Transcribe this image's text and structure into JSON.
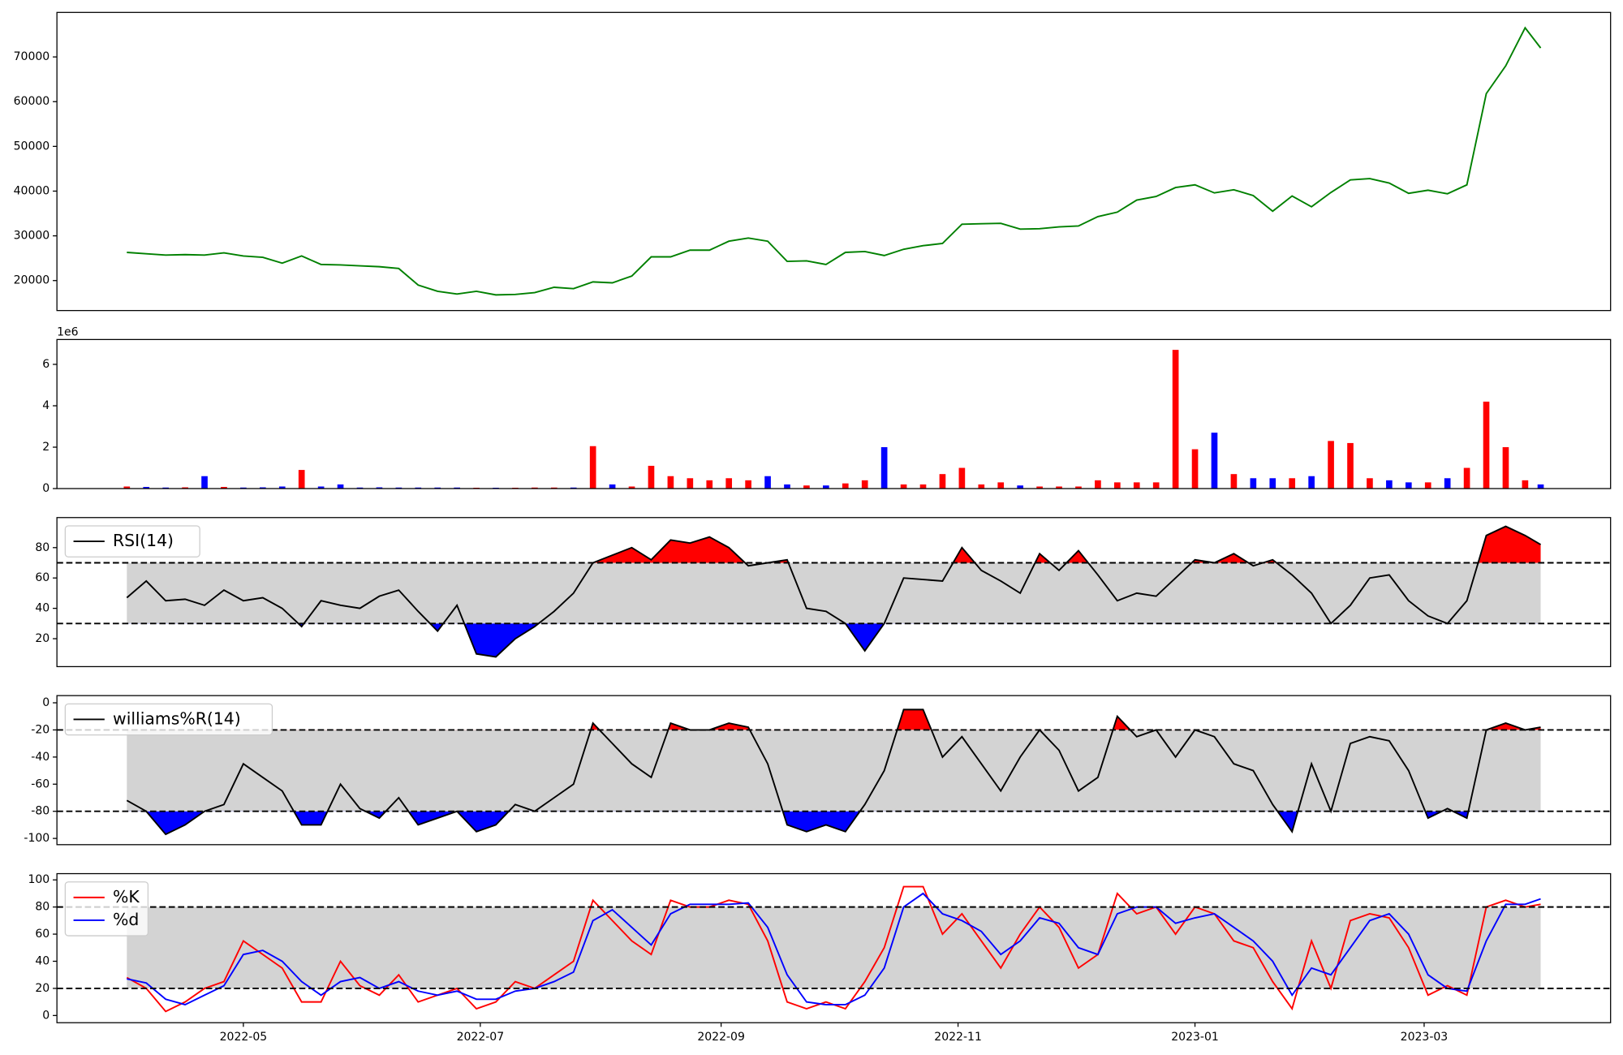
{
  "chart_data": [
    {
      "type": "line",
      "x": [
        0,
        5,
        10,
        15,
        20,
        25,
        30,
        35,
        40,
        45,
        50,
        55,
        60,
        65,
        70,
        75,
        80,
        85,
        90,
        95,
        100,
        105,
        110,
        115,
        120,
        125,
        130,
        135,
        140,
        145,
        150,
        155,
        160,
        165,
        170,
        175,
        180,
        185,
        190,
        195,
        200,
        205,
        210,
        215,
        220,
        225,
        230,
        235,
        240,
        245,
        250,
        255,
        260,
        265,
        270,
        275,
        280,
        285,
        290,
        295,
        300,
        305,
        310,
        315,
        320,
        325,
        330,
        335,
        340,
        345,
        350,
        355,
        360,
        364
      ],
      "series": [
        {
          "color": "green",
          "values": [
            26300,
            26000,
            25700,
            25800,
            25700,
            26200,
            25500,
            25200,
            23900,
            25500,
            23600,
            23500,
            23300,
            23100,
            22700,
            19000,
            17600,
            17000,
            17600,
            16800,
            16900,
            17300,
            18500,
            18200,
            19700,
            19500,
            21000,
            25300,
            25300,
            26800,
            26800,
            28800,
            29500,
            28800,
            24300,
            24400,
            23600,
            26300,
            26500,
            25600,
            27000,
            27800,
            28300,
            32600,
            32700,
            32800,
            31500,
            31600,
            32000,
            32200,
            34300,
            35300,
            38000,
            38800,
            40800,
            41400,
            39600,
            40300,
            39000,
            35500,
            38900,
            36500,
            39700,
            42500,
            42800,
            41800,
            39500,
            40200,
            39400,
            41400,
            61800,
            68000,
            76500,
            72000
          ]
        }
      ],
      "xlim": [
        -18,
        382
      ],
      "ylim": [
        13300,
        79950
      ],
      "yticks": [
        20000,
        30000,
        40000,
        50000,
        60000,
        70000
      ]
    },
    {
      "type": "bar",
      "x": [
        0,
        5,
        10,
        15,
        20,
        25,
        30,
        35,
        40,
        45,
        50,
        55,
        60,
        65,
        70,
        75,
        80,
        85,
        90,
        95,
        100,
        105,
        110,
        115,
        120,
        125,
        130,
        135,
        140,
        145,
        150,
        155,
        160,
        165,
        170,
        175,
        180,
        185,
        190,
        195,
        200,
        205,
        210,
        215,
        220,
        225,
        230,
        235,
        240,
        245,
        250,
        255,
        260,
        265,
        270,
        275,
        280,
        285,
        290,
        295,
        300,
        305,
        310,
        315,
        320,
        325,
        330,
        335,
        340,
        345,
        350,
        355,
        360,
        364
      ],
      "values": [
        0.1,
        0.08,
        0.05,
        0.06,
        0.6,
        0.08,
        0.05,
        0.06,
        0.1,
        0.9,
        0.1,
        0.2,
        0.05,
        0.06,
        0.05,
        0.05,
        0.05,
        0.05,
        0.04,
        0.04,
        0.04,
        0.05,
        0.05,
        0.05,
        2.05,
        0.2,
        0.1,
        1.1,
        0.6,
        0.5,
        0.4,
        0.5,
        0.4,
        0.6,
        0.2,
        0.15,
        0.15,
        0.25,
        0.4,
        2.0,
        0.2,
        0.2,
        0.7,
        1.0,
        0.2,
        0.3,
        0.15,
        0.1,
        0.1,
        0.1,
        0.4,
        0.3,
        0.3,
        0.3,
        6.7,
        1.9,
        2.7,
        0.7,
        0.5,
        0.5,
        0.5,
        0.6,
        2.3,
        2.2,
        0.5,
        0.4,
        0.3,
        0.3,
        0.5,
        1.0,
        4.2,
        2.0,
        0.4,
        0.2
      ],
      "colors": [
        "red",
        "blue",
        "blue",
        "red",
        "blue",
        "red",
        "blue",
        "blue",
        "blue",
        "red",
        "blue",
        "blue",
        "blue",
        "blue",
        "blue",
        "blue",
        "blue",
        "blue",
        "red",
        "blue",
        "red",
        "red",
        "red",
        "blue",
        "red",
        "blue",
        "red",
        "red",
        "red",
        "red",
        "red",
        "red",
        "red",
        "blue",
        "blue",
        "red",
        "blue",
        "red",
        "red",
        "blue",
        "red",
        "red",
        "red",
        "red",
        "red",
        "red",
        "blue",
        "red",
        "red",
        "red",
        "red",
        "red",
        "red",
        "red",
        "red",
        "red",
        "blue",
        "red",
        "blue",
        "blue",
        "red",
        "blue",
        "red",
        "red",
        "red",
        "blue",
        "blue",
        "red",
        "blue",
        "red",
        "red",
        "red",
        "red",
        "blue"
      ],
      "xlim": [
        -18,
        382
      ],
      "ylim": [
        0,
        7.2
      ],
      "yticks": [
        0,
        2,
        4,
        6
      ],
      "offset_label": "1e6"
    },
    {
      "type": "line",
      "x": [
        0,
        5,
        10,
        15,
        20,
        25,
        30,
        35,
        40,
        45,
        50,
        55,
        60,
        65,
        70,
        75,
        80,
        85,
        90,
        95,
        100,
        105,
        110,
        115,
        120,
        125,
        130,
        135,
        140,
        145,
        150,
        155,
        160,
        165,
        170,
        175,
        180,
        185,
        190,
        195,
        200,
        205,
        210,
        215,
        220,
        225,
        230,
        235,
        240,
        245,
        250,
        255,
        260,
        265,
        270,
        275,
        280,
        285,
        290,
        295,
        300,
        305,
        310,
        315,
        320,
        325,
        330,
        335,
        340,
        345,
        350,
        355,
        360,
        364
      ],
      "series": [
        {
          "name": "RSI(14)",
          "color": "black",
          "values": [
            47,
            58,
            45,
            46,
            42,
            52,
            45,
            47,
            40,
            28,
            45,
            42,
            40,
            48,
            52,
            38,
            25,
            42,
            10,
            8,
            20,
            28,
            38,
            50,
            70,
            75,
            80,
            72,
            85,
            83,
            87,
            80,
            68,
            70,
            72,
            40,
            38,
            30,
            12,
            30,
            60,
            59,
            58,
            80,
            65,
            58,
            50,
            76,
            65,
            78,
            62,
            45,
            50,
            48,
            60,
            72,
            70,
            76,
            68,
            72,
            62,
            50,
            30,
            42,
            60,
            62,
            45,
            35,
            30,
            45,
            88,
            94,
            88,
            82
          ]
        }
      ],
      "xlim": [
        -18,
        382
      ],
      "ylim": [
        1.6,
        99.8
      ],
      "yticks": [
        20,
        40,
        60,
        80
      ],
      "levels": [
        30,
        70
      ],
      "band_color": "lightgray",
      "above_color": "red",
      "below_color": "blue",
      "legend": "upper left"
    },
    {
      "type": "line",
      "x": [
        0,
        5,
        10,
        15,
        20,
        25,
        30,
        35,
        40,
        45,
        50,
        55,
        60,
        65,
        70,
        75,
        80,
        85,
        90,
        95,
        100,
        105,
        110,
        115,
        120,
        125,
        130,
        135,
        140,
        145,
        150,
        155,
        160,
        165,
        170,
        175,
        180,
        185,
        190,
        195,
        200,
        205,
        210,
        215,
        220,
        225,
        230,
        235,
        240,
        245,
        250,
        255,
        260,
        265,
        270,
        275,
        280,
        285,
        290,
        295,
        300,
        305,
        310,
        315,
        320,
        325,
        330,
        335,
        340,
        345,
        350,
        355,
        360,
        364
      ],
      "series": [
        {
          "name": "williams%R(14)",
          "color": "black",
          "values": [
            -72,
            -80,
            -97,
            -90,
            -80,
            -75,
            -45,
            -55,
            -65,
            -90,
            -90,
            -60,
            -78,
            -85,
            -70,
            -90,
            -85,
            -80,
            -95,
            -90,
            -75,
            -80,
            -70,
            -60,
            -15,
            -30,
            -45,
            -55,
            -15,
            -20,
            -20,
            -15,
            -18,
            -45,
            -90,
            -95,
            -90,
            -95,
            -75,
            -50,
            -5,
            -5,
            -40,
            -25,
            -45,
            -65,
            -40,
            -20,
            -35,
            -65,
            -55,
            -10,
            -25,
            -20,
            -40,
            -20,
            -25,
            -45,
            -50,
            -75,
            -95,
            -45,
            -80,
            -30,
            -25,
            -28,
            -50,
            -85,
            -78,
            -85,
            -20,
            -15,
            -20,
            -18
          ]
        }
      ],
      "xlim": [
        -18,
        382
      ],
      "ylim": [
        -104.6,
        5.3
      ],
      "yticks": [
        -100,
        -80,
        -60,
        -40,
        -20,
        0
      ],
      "levels": [
        -80,
        -20
      ],
      "band_color": "lightgray",
      "above_color": "red",
      "below_color": "blue",
      "legend": "upper left"
    },
    {
      "type": "line",
      "x": [
        0,
        5,
        10,
        15,
        20,
        25,
        30,
        35,
        40,
        45,
        50,
        55,
        60,
        65,
        70,
        75,
        80,
        85,
        90,
        95,
        100,
        105,
        110,
        115,
        120,
        125,
        130,
        135,
        140,
        145,
        150,
        155,
        160,
        165,
        170,
        175,
        180,
        185,
        190,
        195,
        200,
        205,
        210,
        215,
        220,
        225,
        230,
        235,
        240,
        245,
        250,
        255,
        260,
        265,
        270,
        275,
        280,
        285,
        290,
        295,
        300,
        305,
        310,
        315,
        320,
        325,
        330,
        335,
        340,
        345,
        350,
        355,
        360,
        364
      ],
      "series": [
        {
          "name": "%K",
          "color": "red",
          "values": [
            28,
            20,
            3,
            10,
            20,
            25,
            55,
            45,
            35,
            10,
            10,
            40,
            22,
            15,
            30,
            10,
            15,
            20,
            5,
            10,
            25,
            20,
            30,
            40,
            85,
            70,
            55,
            45,
            85,
            80,
            80,
            85,
            82,
            55,
            10,
            5,
            10,
            5,
            25,
            50,
            95,
            95,
            60,
            75,
            55,
            35,
            60,
            80,
            65,
            35,
            45,
            90,
            75,
            80,
            60,
            80,
            75,
            55,
            50,
            25,
            5,
            55,
            20,
            70,
            75,
            72,
            50,
            15,
            22,
            15,
            80,
            85,
            80,
            82
          ]
        },
        {
          "name": "%d",
          "color": "blue",
          "values": [
            27,
            24,
            12,
            8,
            15,
            22,
            45,
            48,
            40,
            25,
            15,
            25,
            28,
            20,
            25,
            18,
            15,
            18,
            12,
            12,
            18,
            20,
            25,
            32,
            70,
            78,
            65,
            52,
            75,
            82,
            82,
            82,
            83,
            65,
            30,
            10,
            8,
            8,
            15,
            35,
            80,
            90,
            75,
            70,
            62,
            45,
            55,
            72,
            68,
            50,
            45,
            75,
            80,
            80,
            68,
            72,
            75,
            65,
            55,
            40,
            15,
            35,
            30,
            50,
            70,
            75,
            60,
            30,
            20,
            18,
            55,
            82,
            82,
            86
          ]
        }
      ],
      "xlim": [
        -18,
        382
      ],
      "ylim": [
        -5.3,
        104.6
      ],
      "yticks": [
        0,
        20,
        40,
        60,
        80,
        100
      ],
      "xticks": [
        {
          "value": 30,
          "label": "2022-05"
        },
        {
          "value": 91,
          "label": "2022-07"
        },
        {
          "value": 153,
          "label": "2022-09"
        },
        {
          "value": 214,
          "label": "2022-11"
        },
        {
          "value": 275,
          "label": "2023-01"
        },
        {
          "value": 334,
          "label": "2023-03"
        }
      ],
      "levels": [
        20,
        80
      ],
      "band_color": "lightgray",
      "legend": "upper left"
    }
  ]
}
